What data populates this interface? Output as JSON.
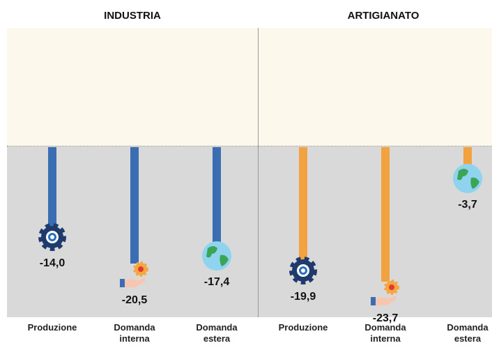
{
  "chart_data": [
    {
      "type": "bar",
      "title": "INDUSTRIA",
      "categories": [
        "Produzione",
        "Domanda interna",
        "Domanda estera"
      ],
      "values": [
        -14.0,
        -20.5,
        -17.4
      ],
      "value_labels": [
        "-14,0",
        "-20,5",
        "-17,4"
      ],
      "color": "#3b6db3",
      "ylim": [
        -30,
        21
      ]
    },
    {
      "type": "bar",
      "title": "ARTIGIANATO",
      "categories": [
        "Produzione",
        "Domanda interna",
        "Domanda estera"
      ],
      "values": [
        -19.9,
        -23.7,
        -3.7
      ],
      "value_labels": [
        "-19,9",
        "-23,7",
        "-3,7"
      ],
      "color": "#f2a340",
      "ylim": [
        -30,
        21
      ]
    }
  ]
}
